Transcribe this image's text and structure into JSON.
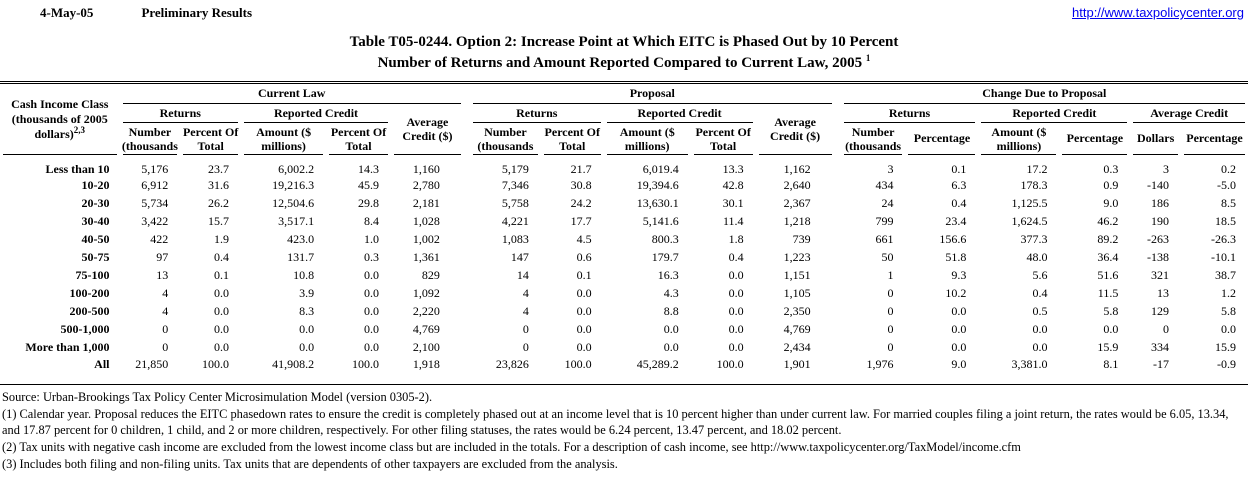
{
  "header": {
    "date": "4-May-05",
    "status": "Preliminary Results",
    "link": "http://www.taxpolicycenter.org"
  },
  "title": {
    "line1": "Table T05-0244. Option 2: Increase Point at Which EITC is Phased Out by 10 Percent",
    "line2": "Number of Returns and Amount Reported Compared to Current Law, 2005",
    "line2_sup": "1"
  },
  "table": {
    "corner": {
      "line1": "Cash Income Class",
      "line2": "(thousands of 2005",
      "line3": "dollars)",
      "sup": "2,3"
    },
    "sections": {
      "current_law": "Current Law",
      "proposal": "Proposal",
      "change": "Change Due to Proposal"
    },
    "subgroups": {
      "returns": "Returns",
      "reported_credit": "Reported Credit",
      "average_credit_dollar": "Average\nCredit ($)",
      "average_credit": "Average Credit"
    },
    "columns": {
      "number_thousands": "Number\n(thousands",
      "percent_of_total": "Percent Of\nTotal",
      "amount_millions": "Amount ($\nmillions)",
      "percentage": "Percentage",
      "dollars": "Dollars"
    },
    "rows": [
      {
        "label": "Less than 10",
        "values": [
          "5,176",
          "23.7",
          "6,002.2",
          "14.3",
          "1,160",
          "5,179",
          "21.7",
          "6,019.4",
          "13.3",
          "1,162",
          "3",
          "0.1",
          "17.2",
          "0.3",
          "3",
          "0.2"
        ]
      },
      {
        "label": "10-20",
        "values": [
          "6,912",
          "31.6",
          "19,216.3",
          "45.9",
          "2,780",
          "7,346",
          "30.8",
          "19,394.6",
          "42.8",
          "2,640",
          "434",
          "6.3",
          "178.3",
          "0.9",
          "-140",
          "-5.0"
        ]
      },
      {
        "label": "20-30",
        "values": [
          "5,734",
          "26.2",
          "12,504.6",
          "29.8",
          "2,181",
          "5,758",
          "24.2",
          "13,630.1",
          "30.1",
          "2,367",
          "24",
          "0.4",
          "1,125.5",
          "9.0",
          "186",
          "8.5"
        ]
      },
      {
        "label": "30-40",
        "values": [
          "3,422",
          "15.7",
          "3,517.1",
          "8.4",
          "1,028",
          "4,221",
          "17.7",
          "5,141.6",
          "11.4",
          "1,218",
          "799",
          "23.4",
          "1,624.5",
          "46.2",
          "190",
          "18.5"
        ]
      },
      {
        "label": "40-50",
        "values": [
          "422",
          "1.9",
          "423.0",
          "1.0",
          "1,002",
          "1,083",
          "4.5",
          "800.3",
          "1.8",
          "739",
          "661",
          "156.6",
          "377.3",
          "89.2",
          "-263",
          "-26.3"
        ]
      },
      {
        "label": "50-75",
        "values": [
          "97",
          "0.4",
          "131.7",
          "0.3",
          "1,361",
          "147",
          "0.6",
          "179.7",
          "0.4",
          "1,223",
          "50",
          "51.8",
          "48.0",
          "36.4",
          "-138",
          "-10.1"
        ]
      },
      {
        "label": "75-100",
        "values": [
          "13",
          "0.1",
          "10.8",
          "0.0",
          "829",
          "14",
          "0.1",
          "16.3",
          "0.0",
          "1,151",
          "1",
          "9.3",
          "5.6",
          "51.6",
          "321",
          "38.7"
        ]
      },
      {
        "label": "100-200",
        "values": [
          "4",
          "0.0",
          "3.9",
          "0.0",
          "1,092",
          "4",
          "0.0",
          "4.3",
          "0.0",
          "1,105",
          "0",
          "10.2",
          "0.4",
          "11.5",
          "13",
          "1.2"
        ]
      },
      {
        "label": "200-500",
        "values": [
          "4",
          "0.0",
          "8.3",
          "0.0",
          "2,220",
          "4",
          "0.0",
          "8.8",
          "0.0",
          "2,350",
          "0",
          "0.0",
          "0.5",
          "5.8",
          "129",
          "5.8"
        ]
      },
      {
        "label": "500-1,000",
        "values": [
          "0",
          "0.0",
          "0.0",
          "0.0",
          "4,769",
          "0",
          "0.0",
          "0.0",
          "0.0",
          "4,769",
          "0",
          "0.0",
          "0.0",
          "0.0",
          "0",
          "0.0"
        ]
      },
      {
        "label": "More than 1,000",
        "values": [
          "0",
          "0.0",
          "0.0",
          "0.0",
          "2,100",
          "0",
          "0.0",
          "0.0",
          "0.0",
          "2,434",
          "0",
          "0.0",
          "0.0",
          "15.9",
          "334",
          "15.9"
        ]
      },
      {
        "label": "All",
        "values": [
          "21,850",
          "100.0",
          "41,908.2",
          "100.0",
          "1,918",
          "23,826",
          "100.0",
          "45,289.2",
          "100.0",
          "1,901",
          "1,976",
          "9.0",
          "3,381.0",
          "8.1",
          "-17",
          "-0.9"
        ]
      }
    ]
  },
  "footnotes": [
    "Source: Urban-Brookings Tax Policy Center Microsimulation Model (version 0305-2).",
    "(1) Calendar year. Proposal reduces the EITC phasedown rates to ensure the credit is completely phased out at an income level that is 10 percent higher than under current law.  For married couples filing a joint return, the rates would be 6.05, 13.34, and 17.87 percent for 0 children, 1 child, and 2 or more children, respectively.  For other filing statuses, the rates would be 6.24 percent, 13.47 percent, and 18.02 percent.",
    "(2) Tax units with negative cash income are excluded from the lowest income class but are included in the totals. For a description of cash income, see http://www.taxpolicycenter.org/TaxModel/income.cfm",
    "(3) Includes both filing and non-filing units.  Tax units that are dependents of other taxpayers are excluded from the analysis."
  ]
}
